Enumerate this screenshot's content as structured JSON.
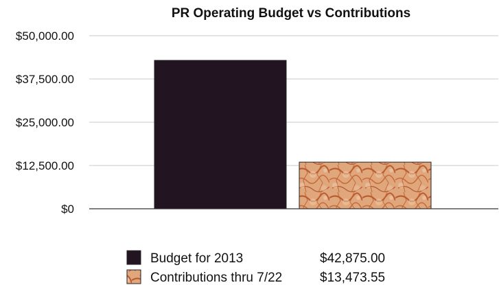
{
  "chart_data": {
    "type": "bar",
    "title": "PR Operating Budget vs Contributions",
    "xlabel": "",
    "ylabel": "",
    "ylim": [
      0,
      50000
    ],
    "grid": true,
    "legend_position": "bottom",
    "y_ticks": [
      {
        "value": 0,
        "label": "$0"
      },
      {
        "value": 12500,
        "label": "$12,500.00"
      },
      {
        "value": 25000,
        "label": "$25,000.00"
      },
      {
        "value": 37500,
        "label": "$37,500.00"
      },
      {
        "value": 50000,
        "label": "$50,000.00"
      }
    ],
    "series": [
      {
        "name": "Budget for 2013",
        "value": 42875.0,
        "value_label": "$42,875.00",
        "color": "#231421",
        "fill": "solid"
      },
      {
        "name": "Contributions thru 7/22",
        "value": 13473.55,
        "value_label": "$13,473.55",
        "color": "#d9905f",
        "fill": "textured-orange"
      }
    ]
  }
}
